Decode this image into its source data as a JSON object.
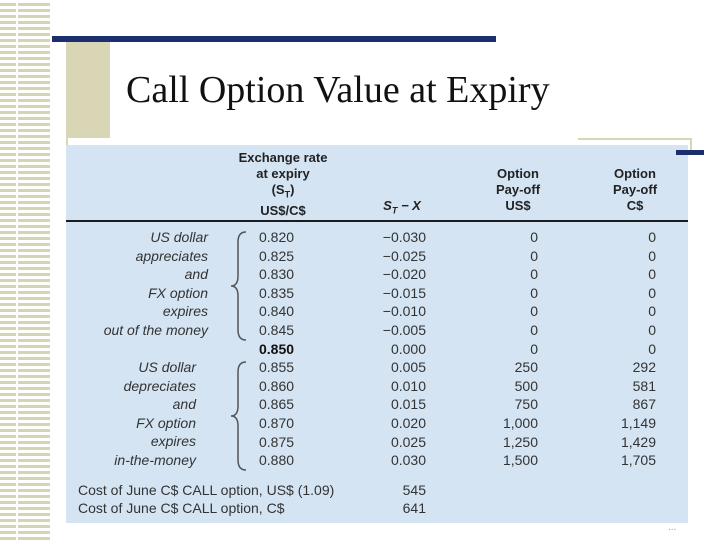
{
  "slide": {
    "title": "Call Option Value at Expiry",
    "page_number": "..."
  },
  "table": {
    "headers": {
      "col1": [
        "Exchange rate",
        "at expiry",
        "(S",
        "US$/C$"
      ],
      "col1_sub": "T",
      "col2_main": "S",
      "col2_sub": "T",
      "col2_rest": " − X",
      "col3": [
        "Option",
        "Pay-off",
        "US$"
      ],
      "col4": [
        "Option",
        "Pay-off",
        "C$"
      ]
    },
    "group_labels": {
      "otm": [
        "US dollar",
        "appreciates",
        "and",
        "FX option",
        "expires",
        "out of the money"
      ],
      "itm": [
        "US dollar",
        "depreciates",
        "and",
        "FX option",
        "expires",
        "in-the-money"
      ]
    },
    "rows": [
      {
        "rate": "0.820",
        "diff": "−0.030",
        "usd": "0",
        "cad": "0"
      },
      {
        "rate": "0.825",
        "diff": "−0.025",
        "usd": "0",
        "cad": "0"
      },
      {
        "rate": "0.830",
        "diff": "−0.020",
        "usd": "0",
        "cad": "0"
      },
      {
        "rate": "0.835",
        "diff": "−0.015",
        "usd": "0",
        "cad": "0"
      },
      {
        "rate": "0.840",
        "diff": "−0.010",
        "usd": "0",
        "cad": "0"
      },
      {
        "rate": "0.845",
        "diff": "−0.005",
        "usd": "0",
        "cad": "0"
      },
      {
        "rate": "0.850",
        "diff": "0.000",
        "usd": "0",
        "cad": "0"
      },
      {
        "rate": "0.855",
        "diff": "0.005",
        "usd": "250",
        "cad": "292"
      },
      {
        "rate": "0.860",
        "diff": "0.010",
        "usd": "500",
        "cad": "581"
      },
      {
        "rate": "0.865",
        "diff": "0.015",
        "usd": "750",
        "cad": "867"
      },
      {
        "rate": "0.870",
        "diff": "0.020",
        "usd": "1,000",
        "cad": "1,149"
      },
      {
        "rate": "0.875",
        "diff": "0.025",
        "usd": "1,250",
        "cad": "1,429"
      },
      {
        "rate": "0.880",
        "diff": "0.030",
        "usd": "1,500",
        "cad": "1,705"
      }
    ],
    "footer": [
      {
        "label": "Cost of June C$ CALL option, US$ (1.09)",
        "value": "545"
      },
      {
        "label": "Cost of June C$ CALL option, C$",
        "value": "641"
      }
    ]
  },
  "colors": {
    "table_bg": "#d4e4f3",
    "accent_navy": "#1c2e6e",
    "accent_tan": "#d8d6b4"
  }
}
